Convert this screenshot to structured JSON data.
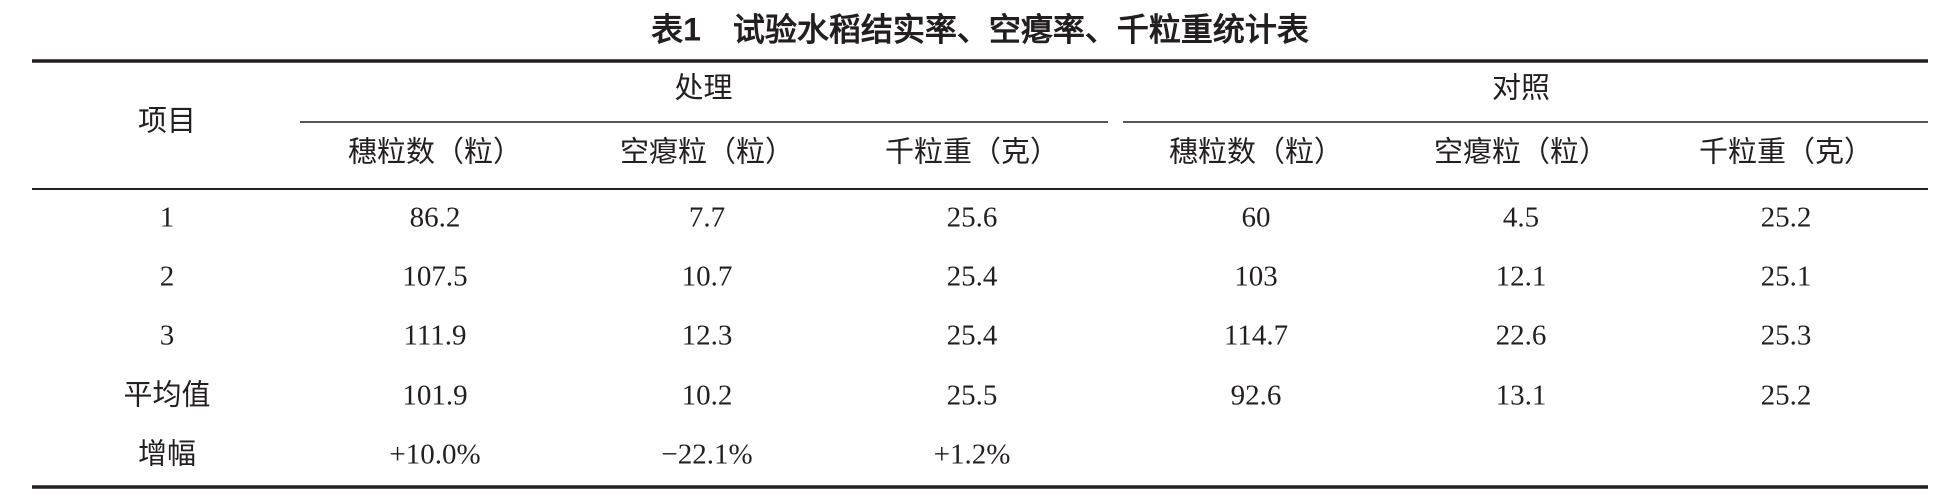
{
  "header": {
    "title": "表1　试验水稻结实率、空瘪率、千粒重统计表"
  },
  "table": {
    "item_header": "项目",
    "groups": [
      {
        "label": "处理",
        "columns": [
          "穗粒数（粒）",
          "空瘪粒（粒）",
          "千粒重（克）"
        ]
      },
      {
        "label": "对照",
        "columns": [
          "穗粒数（粒）",
          "空瘪粒（粒）",
          "千粒重（克）"
        ]
      }
    ],
    "rows": [
      [
        "1",
        "86.2",
        "7.7",
        "25.6",
        "60",
        "4.5",
        "25.2"
      ],
      [
        "2",
        "107.5",
        "10.7",
        "25.4",
        "103",
        "12.1",
        "25.1"
      ],
      [
        "3",
        "111.9",
        "12.3",
        "25.4",
        "114.7",
        "22.6",
        "25.3"
      ],
      [
        "平均值",
        "101.9",
        "10.2",
        "25.5",
        "92.6",
        "13.1",
        "25.2"
      ],
      [
        "增幅",
        "+10.0%",
        "−22.1%",
        "+1.2%"
      ]
    ]
  }
}
